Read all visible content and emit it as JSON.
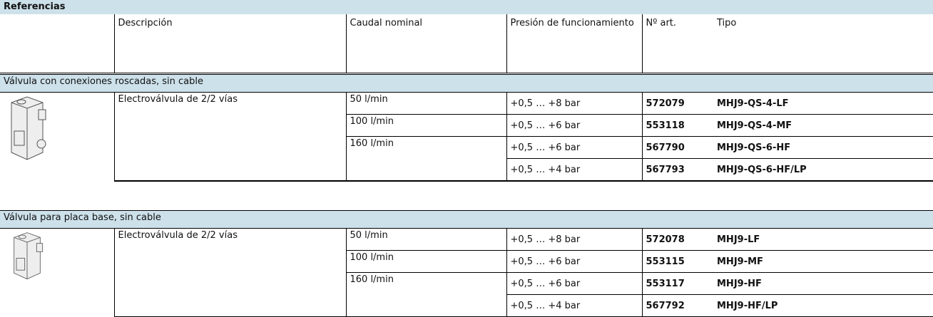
{
  "title": "Referencias",
  "headers": [
    "Descripción",
    "Caudal nominal",
    "Presión de funcionamiento",
    "Nº art.",
    "Tipo"
  ],
  "sections": [
    {
      "label": "Válvula con conexiones roscadas, sin cable",
      "description": "Electroválvula de 2/2 vías",
      "flows": [
        {
          "flow": "50 l/min",
          "variants": [
            {
              "pressure": "+0,5 … +8 bar",
              "part": "572079",
              "type": "MHJ9-QS-4-LF"
            }
          ]
        },
        {
          "flow": "100 l/min",
          "variants": [
            {
              "pressure": "+0,5 … +6 bar",
              "part": "553118",
              "type": "MHJ9-QS-4-MF"
            }
          ]
        },
        {
          "flow": "160 l/min",
          "variants": [
            {
              "pressure": "+0,5 … +6 bar",
              "part": "567790",
              "type": "MHJ9-QS-6-HF"
            },
            {
              "pressure": "+0,5 … +4 bar",
              "part": "567793",
              "type": "MHJ9-QS-6-HF/LP"
            }
          ]
        }
      ]
    },
    {
      "label": "Válvula para placa base, sin cable",
      "description": "Electroválvula de 2/2 vías",
      "flows": [
        {
          "flow": "50 l/min",
          "variants": [
            {
              "pressure": "+0,5 … +8 bar",
              "part": "572078",
              "type": "MHJ9-LF"
            }
          ]
        },
        {
          "flow": "100 l/min",
          "variants": [
            {
              "pressure": "+0,5 … +6 bar",
              "part": "553115",
              "type": "MHJ9-MF"
            }
          ]
        },
        {
          "flow": "160 l/min",
          "variants": [
            {
              "pressure": "+0,5 … +6 bar",
              "part": "553117",
              "type": "MHJ9-HF"
            },
            {
              "pressure": "+0,5 … +4 bar",
              "part": "567792",
              "type": "MHJ9-HF/LP"
            }
          ]
        }
      ]
    }
  ]
}
